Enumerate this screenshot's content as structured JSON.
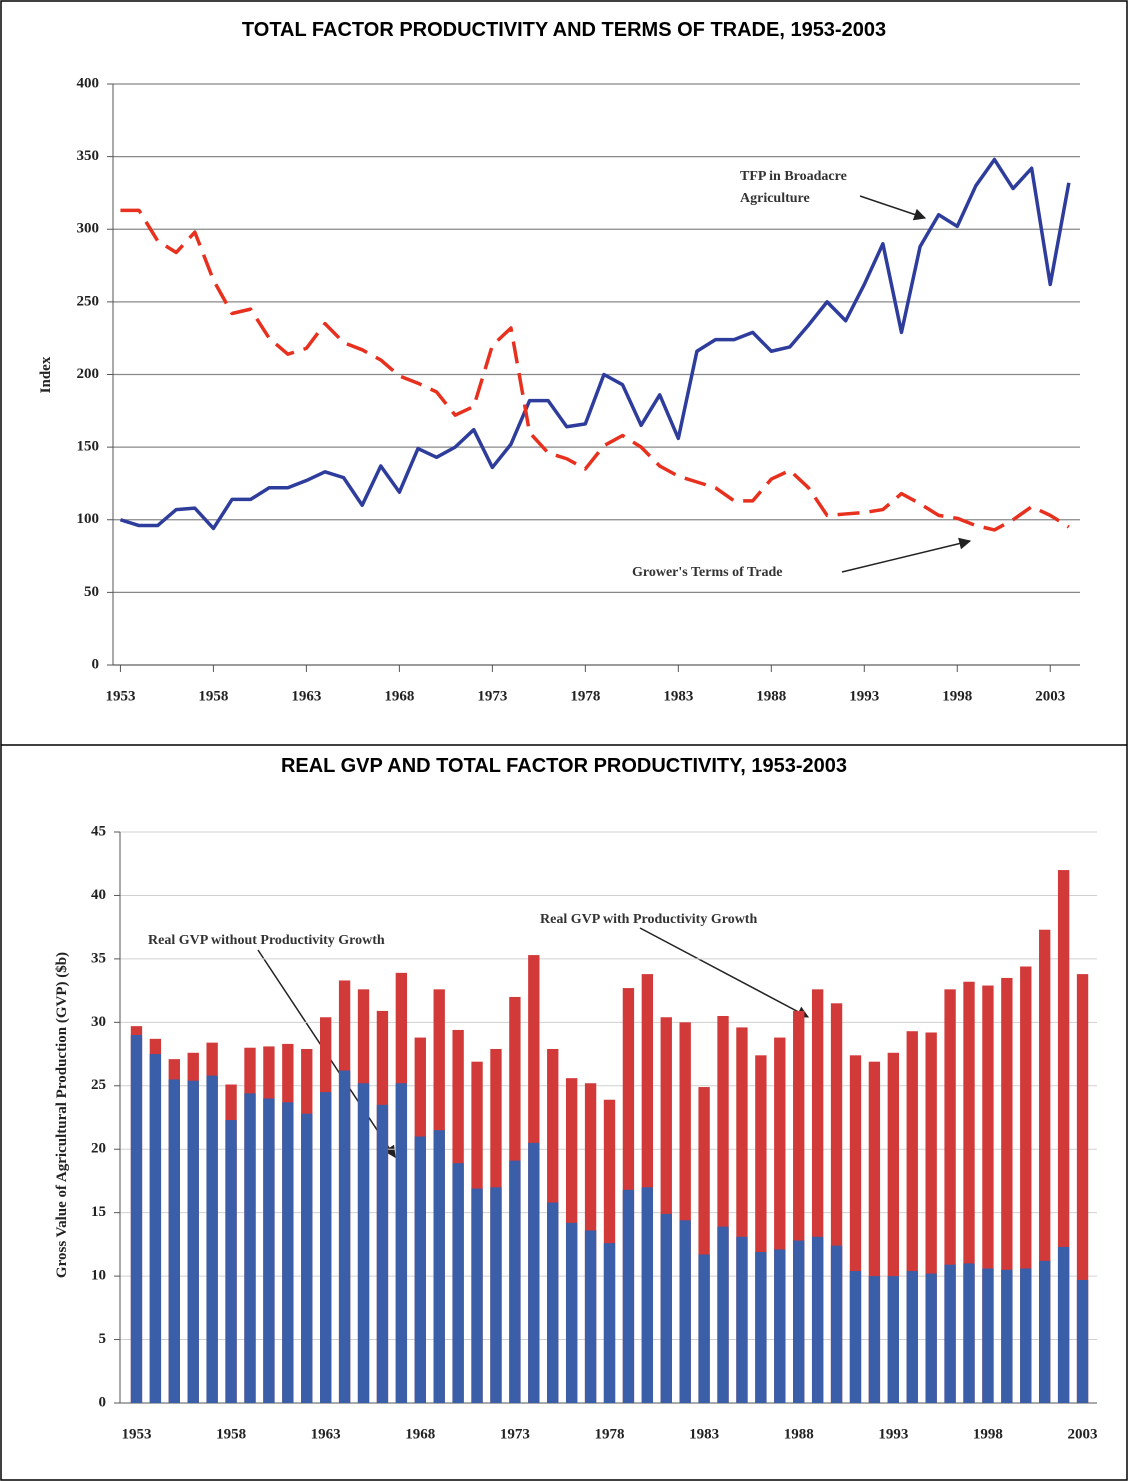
{
  "chart_data": [
    {
      "type": "line",
      "title": "TOTAL FACTOR PRODUCTIVITY AND TERMS OF TRADE, 1953-2003",
      "y_label": "Index",
      "annotations": [
        "TFP in Broadacre Agriculture",
        "Grower's Terms of Trade"
      ],
      "x": [
        1953,
        1954,
        1955,
        1956,
        1957,
        1958,
        1959,
        1960,
        1961,
        1962,
        1963,
        1964,
        1965,
        1966,
        1967,
        1968,
        1969,
        1970,
        1971,
        1972,
        1973,
        1974,
        1975,
        1976,
        1977,
        1978,
        1979,
        1980,
        1981,
        1982,
        1983,
        1984,
        1985,
        1986,
        1987,
        1988,
        1989,
        1990,
        1991,
        1992,
        1993,
        1994,
        1995,
        1996,
        1997,
        1998,
        1999,
        2000,
        2001,
        2002,
        2003,
        2004
      ],
      "series": [
        {
          "name": "TFP in Broadacre Agriculture",
          "color": "#2e3d9c",
          "dashed": false,
          "values": [
            100,
            96,
            96,
            107,
            108,
            94,
            114,
            114,
            122,
            122,
            127,
            133,
            129,
            110,
            137,
            119,
            149,
            143,
            150,
            162,
            136,
            152,
            182,
            182,
            164,
            166,
            200,
            193,
            165,
            186,
            156,
            216,
            224,
            224,
            229,
            216,
            219,
            234,
            250,
            237,
            262,
            290,
            229,
            288,
            310,
            302,
            330,
            348,
            328,
            342,
            262,
            332
          ]
        },
        {
          "name": "Grower's Terms of Trade",
          "color": "#e8301e",
          "dashed": true,
          "values": [
            313,
            313,
            292,
            284,
            298,
            265,
            242,
            245,
            225,
            214,
            218,
            235,
            222,
            217,
            210,
            199,
            194,
            188,
            172,
            178,
            220,
            232,
            160,
            146,
            142,
            135,
            151,
            158,
            150,
            137,
            130,
            126,
            122,
            113,
            113,
            128,
            134,
            122,
            103,
            104,
            105,
            107,
            118,
            111,
            103,
            101,
            96,
            93,
            100,
            109,
            103,
            95
          ]
        }
      ],
      "xlim": [
        1952.6,
        2004.6
      ],
      "xticks": [
        1953,
        1958,
        1963,
        1968,
        1973,
        1978,
        1983,
        1988,
        1993,
        1998,
        2003
      ],
      "ylim": [
        0,
        400
      ],
      "yticks": [
        0,
        50,
        100,
        150,
        200,
        250,
        300,
        350,
        400
      ],
      "grid": true
    },
    {
      "type": "bar",
      "title": "REAL GVP AND TOTAL FACTOR PRODUCTIVITY, 1953-2003",
      "y_label": "Gross Value of Agricultural Production (GVP) ($b)",
      "overlap": true,
      "categories": [
        "1953",
        null,
        null,
        null,
        null,
        "1958",
        null,
        null,
        null,
        null,
        "1963",
        null,
        null,
        null,
        null,
        "1968",
        null,
        null,
        null,
        null,
        "1973",
        null,
        null,
        null,
        null,
        "1978",
        null,
        null,
        null,
        null,
        "1983",
        null,
        null,
        null,
        null,
        "1988",
        null,
        null,
        null,
        null,
        "1993",
        null,
        null,
        null,
        null,
        "1998",
        null,
        null,
        null,
        null,
        "2003"
      ],
      "series": [
        {
          "name": "Real GVP without Productivity Growth",
          "color": "#3a5ea8",
          "values": [
            29.0,
            27.5,
            25.5,
            25.4,
            25.8,
            22.3,
            24.4,
            24.0,
            23.7,
            22.8,
            24.5,
            26.2,
            25.2,
            23.5,
            25.2,
            21.0,
            21.5,
            18.9,
            16.9,
            17.0,
            19.1,
            20.5,
            15.8,
            14.2,
            13.6,
            12.6,
            16.8,
            17.0,
            14.9,
            14.4,
            11.7,
            13.9,
            13.1,
            11.9,
            12.1,
            12.8,
            13.1,
            12.4,
            10.4,
            10.0,
            10.0,
            10.4,
            10.2,
            10.9,
            11.0,
            10.6,
            10.5,
            10.6,
            11.2,
            12.3,
            9.7
          ]
        },
        {
          "name": "Real GVP with Productivity Growth",
          "color": "#d23a3a",
          "values": [
            29.7,
            28.7,
            27.1,
            27.6,
            28.4,
            25.1,
            28.0,
            28.1,
            28.3,
            27.9,
            30.4,
            33.3,
            32.6,
            30.9,
            33.9,
            28.8,
            32.6,
            29.4,
            26.9,
            27.9,
            32.0,
            35.3,
            27.9,
            25.6,
            25.2,
            23.9,
            32.7,
            33.8,
            30.4,
            30.0,
            24.9,
            30.5,
            29.6,
            27.4,
            28.8,
            30.9,
            32.6,
            31.5,
            27.4,
            26.9,
            27.6,
            29.3,
            29.2,
            32.6,
            33.2,
            32.9,
            33.5,
            34.4,
            37.3,
            42.0,
            33.8
          ]
        }
      ],
      "ylim": [
        0,
        45
      ],
      "yticks": [
        0,
        5,
        10,
        15,
        20,
        25,
        30,
        35,
        40,
        45
      ],
      "grid": true
    }
  ]
}
